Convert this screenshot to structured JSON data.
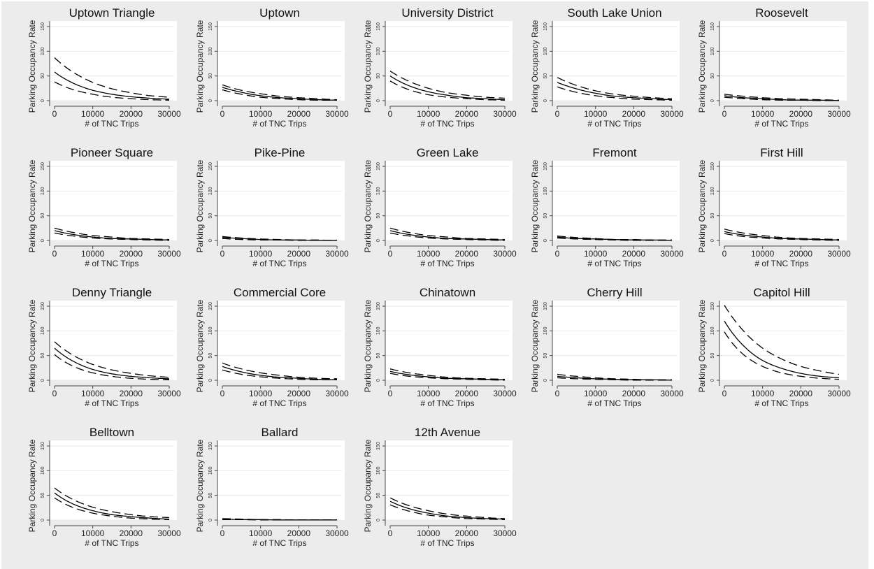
{
  "colors": {
    "figure_background": "#ececec",
    "plot_background": "#ffffff",
    "line": "#000000",
    "grid": "#e8e8e8",
    "axis": "#444444"
  },
  "chart_data": [
    {
      "type": "line",
      "title": "Uptown Triangle",
      "xlabel": "# of TNC Trips",
      "ylabel": "Parking Occupancy Rate",
      "xlim": [
        0,
        30000
      ],
      "ylim": [
        0,
        150
      ],
      "x_ticks": [
        "0",
        "10000",
        "20000",
        "30000"
      ],
      "y_ticks": [
        "0",
        "50",
        "100",
        "150"
      ],
      "grid": true,
      "legend": false,
      "x": [
        0,
        5000,
        10000,
        15000,
        20000,
        25000,
        30000
      ],
      "series": [
        {
          "values": [
            58,
            35,
            21,
            13,
            8,
            5,
            3
          ]
        },
        {
          "values": [
            87,
            57,
            37,
            24,
            16,
            10,
            7
          ]
        },
        {
          "values": [
            38,
            22,
            13,
            7,
            4,
            2,
            1
          ]
        }
      ]
    },
    {
      "type": "line",
      "title": "Uptown",
      "xlabel": "# of TNC Trips",
      "ylabel": "Parking Occupancy Rate",
      "xlim": [
        0,
        30000
      ],
      "ylim": [
        0,
        150
      ],
      "x_ticks": [
        "0",
        "10000",
        "20000",
        "30000"
      ],
      "y_ticks": [
        "0",
        "50",
        "100",
        "150"
      ],
      "grid": true,
      "legend": false,
      "x": [
        0,
        5000,
        10000,
        15000,
        20000,
        25000,
        30000
      ],
      "series": [
        {
          "values": [
            27,
            17,
            10,
            6,
            4,
            2,
            1
          ]
        },
        {
          "values": [
            32,
            21,
            14,
            9,
            6,
            4,
            2
          ]
        },
        {
          "values": [
            22,
            13,
            7,
            4,
            2,
            1,
            1
          ]
        }
      ]
    },
    {
      "type": "line",
      "title": "University District",
      "xlabel": "# of TNC Trips",
      "ylabel": "Parking Occupancy Rate",
      "xlim": [
        0,
        30000
      ],
      "ylim": [
        0,
        150
      ],
      "x_ticks": [
        "0",
        "10000",
        "20000",
        "30000"
      ],
      "y_ticks": [
        "0",
        "50",
        "100",
        "150"
      ],
      "grid": true,
      "legend": false,
      "x": [
        0,
        5000,
        10000,
        15000,
        20000,
        25000,
        30000
      ],
      "series": [
        {
          "values": [
            50,
            30,
            18,
            11,
            6,
            4,
            2
          ]
        },
        {
          "values": [
            60,
            39,
            25,
            16,
            11,
            7,
            5
          ]
        },
        {
          "values": [
            40,
            22,
            12,
            7,
            4,
            2,
            1
          ]
        }
      ]
    },
    {
      "type": "line",
      "title": "South Lake Union",
      "xlabel": "# of TNC Trips",
      "ylabel": "Parking Occupancy Rate",
      "xlim": [
        0,
        30000
      ],
      "ylim": [
        0,
        150
      ],
      "x_ticks": [
        "0",
        "10000",
        "20000",
        "30000"
      ],
      "y_ticks": [
        "0",
        "50",
        "100",
        "150"
      ],
      "grid": true,
      "legend": false,
      "x": [
        0,
        5000,
        10000,
        15000,
        20000,
        25000,
        30000
      ],
      "series": [
        {
          "values": [
            37,
            24,
            15,
            9,
            6,
            4,
            2
          ]
        },
        {
          "values": [
            47,
            31,
            20,
            13,
            9,
            6,
            4
          ]
        },
        {
          "values": [
            28,
            17,
            10,
            6,
            3,
            2,
            1
          ]
        }
      ]
    },
    {
      "type": "line",
      "title": "Roosevelt",
      "xlabel": "# of TNC Trips",
      "ylabel": "Parking Occupancy Rate",
      "xlim": [
        0,
        30000
      ],
      "ylim": [
        0,
        150
      ],
      "x_ticks": [
        "0",
        "10000",
        "20000",
        "30000"
      ],
      "y_ticks": [
        "0",
        "50",
        "100",
        "150"
      ],
      "grid": true,
      "legend": false,
      "x": [
        0,
        5000,
        10000,
        15000,
        20000,
        25000,
        30000
      ],
      "series": [
        {
          "values": [
            10,
            6,
            4,
            2,
            1,
            1,
            0
          ]
        },
        {
          "values": [
            13,
            9,
            6,
            4,
            3,
            2,
            1
          ]
        },
        {
          "values": [
            7,
            4,
            2,
            1,
            1,
            0,
            0
          ]
        }
      ]
    },
    {
      "type": "line",
      "title": "Pioneer Square",
      "xlabel": "# of TNC Trips",
      "ylabel": "Parking Occupancy Rate",
      "xlim": [
        0,
        30000
      ],
      "ylim": [
        0,
        150
      ],
      "x_ticks": [
        "0",
        "10000",
        "20000",
        "30000"
      ],
      "y_ticks": [
        "0",
        "50",
        "100",
        "150"
      ],
      "grid": true,
      "legend": false,
      "x": [
        0,
        5000,
        10000,
        15000,
        20000,
        25000,
        30000
      ],
      "series": [
        {
          "values": [
            20,
            12,
            7,
            4,
            3,
            2,
            1
          ]
        },
        {
          "values": [
            25,
            16,
            10,
            7,
            4,
            3,
            2
          ]
        },
        {
          "values": [
            15,
            9,
            5,
            3,
            2,
            1,
            0
          ]
        }
      ]
    },
    {
      "type": "line",
      "title": "Pike-Pine",
      "xlabel": "# of TNC Trips",
      "ylabel": "Parking Occupancy Rate",
      "xlim": [
        0,
        30000
      ],
      "ylim": [
        0,
        150
      ],
      "x_ticks": [
        "0",
        "10000",
        "20000",
        "30000"
      ],
      "y_ticks": [
        "0",
        "50",
        "100",
        "150"
      ],
      "grid": true,
      "legend": false,
      "x": [
        0,
        5000,
        10000,
        15000,
        20000,
        25000,
        30000
      ],
      "series": [
        {
          "values": [
            6,
            4,
            2,
            1,
            1,
            0,
            0
          ]
        },
        {
          "values": [
            8,
            5,
            3,
            2,
            1,
            1,
            0
          ]
        },
        {
          "values": [
            4,
            2,
            1,
            1,
            0,
            0,
            0
          ]
        }
      ]
    },
    {
      "type": "line",
      "title": "Green Lake",
      "xlabel": "# of TNC Trips",
      "ylabel": "Parking Occupancy Rate",
      "xlim": [
        0,
        30000
      ],
      "ylim": [
        0,
        150
      ],
      "x_ticks": [
        "0",
        "10000",
        "20000",
        "30000"
      ],
      "y_ticks": [
        "0",
        "50",
        "100",
        "150"
      ],
      "grid": true,
      "legend": false,
      "x": [
        0,
        5000,
        10000,
        15000,
        20000,
        25000,
        30000
      ],
      "series": [
        {
          "values": [
            20,
            12,
            7,
            4,
            3,
            2,
            1
          ]
        },
        {
          "values": [
            25,
            16,
            10,
            7,
            4,
            3,
            2
          ]
        },
        {
          "values": [
            15,
            9,
            5,
            3,
            2,
            1,
            0
          ]
        }
      ]
    },
    {
      "type": "line",
      "title": "Fremont",
      "xlabel": "# of TNC Trips",
      "ylabel": "Parking Occupancy Rate",
      "xlim": [
        0,
        30000
      ],
      "ylim": [
        0,
        150
      ],
      "x_ticks": [
        "0",
        "10000",
        "20000",
        "30000"
      ],
      "y_ticks": [
        "0",
        "50",
        "100",
        "150"
      ],
      "grid": true,
      "legend": false,
      "x": [
        0,
        5000,
        10000,
        15000,
        20000,
        25000,
        30000
      ],
      "series": [
        {
          "values": [
            7,
            4,
            3,
            2,
            1,
            1,
            0
          ]
        },
        {
          "values": [
            9,
            6,
            4,
            2,
            2,
            1,
            1
          ]
        },
        {
          "values": [
            5,
            3,
            2,
            1,
            0,
            0,
            0
          ]
        }
      ]
    },
    {
      "type": "line",
      "title": "First Hill",
      "xlabel": "# of TNC Trips",
      "ylabel": "Parking Occupancy Rate",
      "xlim": [
        0,
        30000
      ],
      "ylim": [
        0,
        150
      ],
      "x_ticks": [
        "0",
        "10000",
        "20000",
        "30000"
      ],
      "y_ticks": [
        "0",
        "50",
        "100",
        "150"
      ],
      "grid": true,
      "legend": false,
      "x": [
        0,
        5000,
        10000,
        15000,
        20000,
        25000,
        30000
      ],
      "series": [
        {
          "values": [
            18,
            11,
            7,
            4,
            3,
            2,
            1
          ]
        },
        {
          "values": [
            23,
            15,
            10,
            6,
            4,
            3,
            2
          ]
        },
        {
          "values": [
            14,
            8,
            5,
            3,
            2,
            1,
            0
          ]
        }
      ]
    },
    {
      "type": "line",
      "title": "Denny Triangle",
      "xlabel": "# of TNC Trips",
      "ylabel": "Parking Occupancy Rate",
      "xlim": [
        0,
        30000
      ],
      "ylim": [
        0,
        150
      ],
      "x_ticks": [
        "0",
        "10000",
        "20000",
        "30000"
      ],
      "y_ticks": [
        "0",
        "50",
        "100",
        "150"
      ],
      "grid": true,
      "legend": false,
      "x": [
        0,
        5000,
        10000,
        15000,
        20000,
        25000,
        30000
      ],
      "series": [
        {
          "values": [
            65,
            38,
            22,
            13,
            8,
            5,
            3
          ]
        },
        {
          "values": [
            78,
            50,
            32,
            21,
            14,
            9,
            6
          ]
        },
        {
          "values": [
            52,
            28,
            15,
            8,
            4,
            2,
            1
          ]
        }
      ]
    },
    {
      "type": "line",
      "title": "Commercial Core",
      "xlabel": "# of TNC Trips",
      "ylabel": "Parking Occupancy Rate",
      "xlim": [
        0,
        30000
      ],
      "ylim": [
        0,
        150
      ],
      "x_ticks": [
        "0",
        "10000",
        "20000",
        "30000"
      ],
      "y_ticks": [
        "0",
        "50",
        "100",
        "150"
      ],
      "grid": true,
      "legend": false,
      "x": [
        0,
        5000,
        10000,
        15000,
        20000,
        25000,
        30000
      ],
      "series": [
        {
          "values": [
            28,
            17,
            10,
            6,
            4,
            2,
            1
          ]
        },
        {
          "values": [
            35,
            23,
            15,
            10,
            6,
            4,
            3
          ]
        },
        {
          "values": [
            21,
            12,
            7,
            4,
            2,
            1,
            1
          ]
        }
      ]
    },
    {
      "type": "line",
      "title": "Chinatown",
      "xlabel": "# of TNC Trips",
      "ylabel": "Parking Occupancy Rate",
      "xlim": [
        0,
        30000
      ],
      "ylim": [
        0,
        150
      ],
      "x_ticks": [
        "0",
        "10000",
        "20000",
        "30000"
      ],
      "y_ticks": [
        "0",
        "50",
        "100",
        "150"
      ],
      "grid": true,
      "legend": false,
      "x": [
        0,
        5000,
        10000,
        15000,
        20000,
        25000,
        30000
      ],
      "series": [
        {
          "values": [
            18,
            11,
            7,
            4,
            3,
            2,
            1
          ]
        },
        {
          "values": [
            23,
            15,
            10,
            6,
            4,
            3,
            2
          ]
        },
        {
          "values": [
            14,
            8,
            5,
            3,
            2,
            1,
            0
          ]
        }
      ]
    },
    {
      "type": "line",
      "title": "Cherry Hill",
      "xlabel": "# of TNC Trips",
      "ylabel": "Parking Occupancy Rate",
      "xlim": [
        0,
        30000
      ],
      "ylim": [
        0,
        150
      ],
      "x_ticks": [
        "0",
        "10000",
        "20000",
        "30000"
      ],
      "y_ticks": [
        "0",
        "50",
        "100",
        "150"
      ],
      "grid": true,
      "legend": false,
      "x": [
        0,
        5000,
        10000,
        15000,
        20000,
        25000,
        30000
      ],
      "series": [
        {
          "values": [
            8,
            5,
            3,
            2,
            1,
            1,
            0
          ]
        },
        {
          "values": [
            12,
            8,
            5,
            3,
            2,
            1,
            1
          ]
        },
        {
          "values": [
            5,
            3,
            2,
            1,
            0,
            0,
            0
          ]
        }
      ]
    },
    {
      "type": "line",
      "title": "Capitol Hill",
      "xlabel": "# of TNC Trips",
      "ylabel": "Parking Occupancy Rate",
      "xlim": [
        0,
        30000
      ],
      "ylim": [
        0,
        150
      ],
      "x_ticks": [
        "0",
        "10000",
        "20000",
        "30000"
      ],
      "y_ticks": [
        "0",
        "50",
        "100",
        "150"
      ],
      "grid": true,
      "legend": false,
      "x": [
        0,
        5000,
        10000,
        15000,
        20000,
        25000,
        30000
      ],
      "series": [
        {
          "values": [
            120,
            70,
            40,
            24,
            14,
            8,
            5
          ]
        },
        {
          "values": [
            152,
            100,
            65,
            43,
            28,
            19,
            12
          ]
        },
        {
          "values": [
            98,
            52,
            28,
            15,
            8,
            4,
            2
          ]
        }
      ]
    },
    {
      "type": "line",
      "title": "Belltown",
      "xlabel": "# of TNC Trips",
      "ylabel": "Parking Occupancy Rate",
      "xlim": [
        0,
        30000
      ],
      "ylim": [
        0,
        150
      ],
      "x_ticks": [
        "0",
        "10000",
        "20000",
        "30000"
      ],
      "y_ticks": [
        "0",
        "50",
        "100",
        "150"
      ],
      "grid": true,
      "legend": false,
      "x": [
        0,
        5000,
        10000,
        15000,
        20000,
        25000,
        30000
      ],
      "series": [
        {
          "values": [
            55,
            32,
            19,
            11,
            7,
            4,
            2
          ]
        },
        {
          "values": [
            65,
            41,
            26,
            17,
            11,
            7,
            5
          ]
        },
        {
          "values": [
            45,
            25,
            14,
            8,
            4,
            2,
            1
          ]
        }
      ]
    },
    {
      "type": "line",
      "title": "Ballard",
      "xlabel": "# of TNC Trips",
      "ylabel": "Parking Occupancy Rate",
      "xlim": [
        0,
        30000
      ],
      "ylim": [
        0,
        150
      ],
      "x_ticks": [
        "0",
        "10000",
        "20000",
        "30000"
      ],
      "y_ticks": [
        "0",
        "50",
        "100",
        "150"
      ],
      "grid": true,
      "legend": false,
      "x": [
        0,
        5000,
        10000,
        15000,
        20000,
        25000,
        30000
      ],
      "series": [
        {
          "values": [
            2,
            1,
            1,
            0,
            0,
            0,
            0
          ]
        },
        {
          "values": [
            3,
            2,
            1,
            1,
            0,
            0,
            0
          ]
        },
        {
          "values": [
            1,
            1,
            0,
            0,
            0,
            0,
            0
          ]
        }
      ]
    },
    {
      "type": "line",
      "title": "12th Avenue",
      "xlabel": "# of TNC Trips",
      "ylabel": "Parking Occupancy Rate",
      "xlim": [
        0,
        30000
      ],
      "ylim": [
        0,
        150
      ],
      "x_ticks": [
        "0",
        "10000",
        "20000",
        "30000"
      ],
      "y_ticks": [
        "0",
        "50",
        "100",
        "150"
      ],
      "grid": true,
      "legend": false,
      "x": [
        0,
        5000,
        10000,
        15000,
        20000,
        25000,
        30000
      ],
      "series": [
        {
          "values": [
            38,
            23,
            14,
            8,
            5,
            3,
            2
          ]
        },
        {
          "values": [
            45,
            29,
            19,
            12,
            8,
            5,
            3
          ]
        },
        {
          "values": [
            31,
            18,
            10,
            6,
            3,
            2,
            1
          ]
        }
      ]
    }
  ]
}
